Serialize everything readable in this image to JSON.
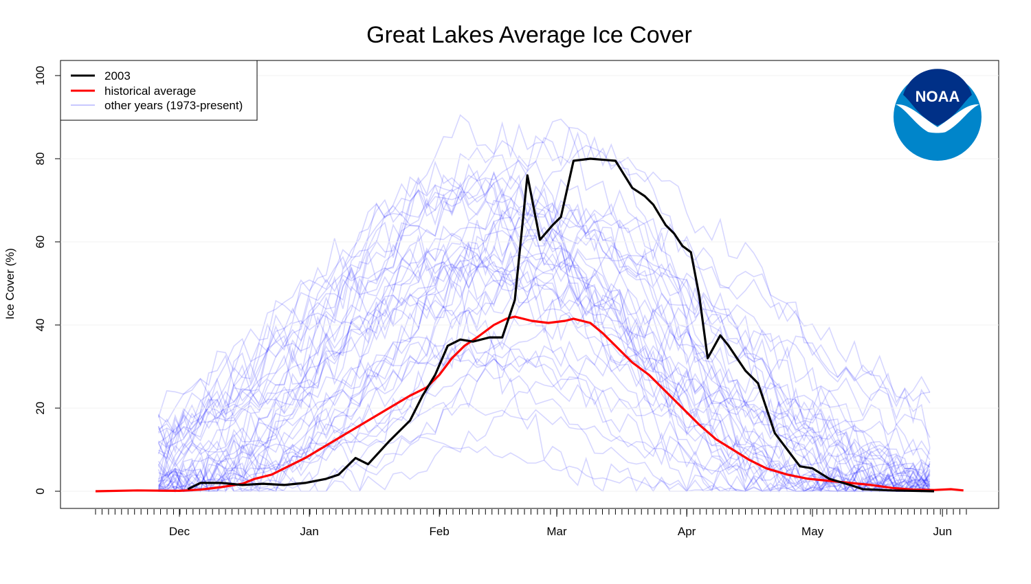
{
  "chart_data": {
    "type": "line",
    "title": "Great Lakes Average Ice Cover",
    "ylabel": "Ice Cover (%)",
    "xlabel": "",
    "ylim": [
      0,
      100
    ],
    "yticks": [
      0,
      20,
      40,
      60,
      80,
      100
    ],
    "x_unit": "day of season (Nov 11 = 0)",
    "xlim": [
      -2,
      210
    ],
    "month_ticks": [
      {
        "label": "Dec",
        "x": 20
      },
      {
        "label": "Jan",
        "x": 51
      },
      {
        "label": "Feb",
        "x": 82
      },
      {
        "label": "Mar",
        "x": 110
      },
      {
        "label": "Apr",
        "x": 141
      },
      {
        "label": "May",
        "x": 171
      },
      {
        "label": "Jun",
        "x": 202
      }
    ],
    "legend": {
      "position": "top-left",
      "entries": [
        {
          "label": "2003",
          "color": "#000000"
        },
        {
          "label": "historical average",
          "color": "#ff0000"
        },
        {
          "label": "other years (1973-present)",
          "color": "#c8c8ff"
        }
      ]
    },
    "logo": {
      "text": "NOAA",
      "position": "top-right",
      "colors": {
        "outer": "#0085ca",
        "inner": "#003087",
        "bird": "#ffffff"
      }
    },
    "series": [
      {
        "name": "2003",
        "color": "#000000",
        "points": [
          [
            22,
            0.5
          ],
          [
            25,
            2
          ],
          [
            30,
            2
          ],
          [
            35,
            1.5
          ],
          [
            40,
            1.8
          ],
          [
            45,
            1.5
          ],
          [
            50,
            2
          ],
          [
            55,
            3
          ],
          [
            58,
            4
          ],
          [
            62,
            8
          ],
          [
            65,
            6.5
          ],
          [
            70,
            12
          ],
          [
            75,
            17
          ],
          [
            78,
            23
          ],
          [
            81,
            28
          ],
          [
            84,
            35
          ],
          [
            87,
            36.5
          ],
          [
            90,
            36
          ],
          [
            94,
            37
          ],
          [
            97,
            37
          ],
          [
            100,
            46
          ],
          [
            103,
            76
          ],
          [
            106,
            60.5
          ],
          [
            109,
            64
          ],
          [
            111,
            66
          ],
          [
            114,
            79.5
          ],
          [
            118,
            80
          ],
          [
            124,
            79.5
          ],
          [
            128,
            73
          ],
          [
            131,
            71
          ],
          [
            133,
            69
          ],
          [
            136,
            64
          ],
          [
            138,
            62
          ],
          [
            140,
            59
          ],
          [
            142,
            57.5
          ],
          [
            144,
            47
          ],
          [
            146,
            32
          ],
          [
            149,
            37.5
          ],
          [
            151,
            35
          ],
          [
            155,
            29
          ],
          [
            158,
            26
          ],
          [
            162,
            14
          ],
          [
            165,
            10
          ],
          [
            168,
            6
          ],
          [
            171,
            5.5
          ],
          [
            175,
            3
          ],
          [
            180,
            1.5
          ],
          [
            183,
            0.5
          ],
          [
            190,
            0.2
          ],
          [
            195,
            0.1
          ],
          [
            200,
            0
          ]
        ]
      },
      {
        "name": "historical average",
        "color": "#ff0000",
        "points": [
          [
            0,
            0
          ],
          [
            10,
            0.2
          ],
          [
            20,
            0.1
          ],
          [
            25,
            0.4
          ],
          [
            30,
            1
          ],
          [
            35,
            1.8
          ],
          [
            38,
            3
          ],
          [
            42,
            4
          ],
          [
            46,
            6
          ],
          [
            50,
            8
          ],
          [
            55,
            11
          ],
          [
            60,
            14
          ],
          [
            65,
            17
          ],
          [
            70,
            20
          ],
          [
            75,
            23
          ],
          [
            79,
            25
          ],
          [
            82,
            28
          ],
          [
            85,
            32
          ],
          [
            88,
            35
          ],
          [
            91,
            37
          ],
          [
            95,
            40
          ],
          [
            98,
            41.5
          ],
          [
            100,
            42
          ],
          [
            104,
            41
          ],
          [
            108,
            40.5
          ],
          [
            112,
            41
          ],
          [
            114,
            41.5
          ],
          [
            118,
            40.5
          ],
          [
            121,
            38
          ],
          [
            124,
            35
          ],
          [
            128,
            31
          ],
          [
            132,
            28
          ],
          [
            136,
            24
          ],
          [
            140,
            20
          ],
          [
            144,
            16
          ],
          [
            148,
            12.5
          ],
          [
            152,
            10
          ],
          [
            156,
            7.5
          ],
          [
            160,
            5.5
          ],
          [
            165,
            4
          ],
          [
            170,
            3
          ],
          [
            175,
            2.5
          ],
          [
            180,
            2
          ],
          [
            185,
            1.5
          ],
          [
            190,
            0.8
          ],
          [
            195,
            0.4
          ],
          [
            200,
            0.3
          ],
          [
            204,
            0.5
          ],
          [
            207,
            0.2
          ]
        ]
      }
    ]
  }
}
